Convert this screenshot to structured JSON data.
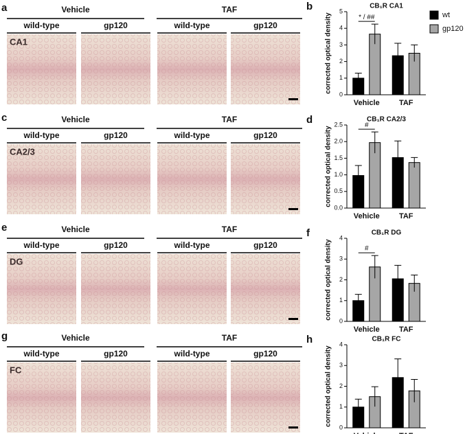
{
  "image_panels": [
    {
      "label": "a",
      "region": "CA1",
      "groups": [
        "Vehicle",
        "TAF"
      ],
      "conditions": [
        "wild-type",
        "gp120",
        "wild-type",
        "gp120"
      ]
    },
    {
      "label": "c",
      "region": "CA2/3",
      "groups": [
        "Vehicle",
        "TAF"
      ],
      "conditions": [
        "wild-type",
        "gp120",
        "wild-type",
        "gp120"
      ]
    },
    {
      "label": "e",
      "region": "DG",
      "groups": [
        "Vehicle",
        "TAF"
      ],
      "conditions": [
        "wild-type",
        "gp120",
        "wild-type",
        "gp120"
      ]
    },
    {
      "label": "g",
      "region": "FC",
      "groups": [
        "Vehicle",
        "TAF"
      ],
      "conditions": [
        "wild-type",
        "gp120",
        "wild-type",
        "gp120"
      ]
    }
  ],
  "chart_data": [
    {
      "type": "bar",
      "panel": "b",
      "title": "CB₁R CA1",
      "y_label": "corrected optical density",
      "categories": [
        "Vehicle",
        "TAF"
      ],
      "series": [
        {
          "name": "wt",
          "color": "#000000",
          "values": [
            1.0,
            2.35
          ],
          "errors": [
            0.3,
            0.75
          ]
        },
        {
          "name": "gp120",
          "color": "#a6a6a6",
          "values": [
            3.65,
            2.5
          ],
          "errors": [
            0.6,
            0.5
          ]
        }
      ],
      "ylim": [
        0,
        5
      ],
      "yticks": [
        0,
        1,
        2,
        3,
        4,
        5
      ],
      "annotation": "* / ##",
      "legend": "top-right"
    },
    {
      "type": "bar",
      "panel": "d",
      "title": "CB₁R CA2/3",
      "y_label": "corrected optical density",
      "categories": [
        "Vehicle",
        "TAF"
      ],
      "series": [
        {
          "name": "wt",
          "color": "#000000",
          "values": [
            0.98,
            1.52
          ],
          "errors": [
            0.3,
            0.5
          ]
        },
        {
          "name": "gp120",
          "color": "#a6a6a6",
          "values": [
            1.97,
            1.37
          ],
          "errors": [
            0.32,
            0.15
          ]
        }
      ],
      "ylim": [
        0,
        2.5
      ],
      "yticks": [
        {
          "value": 0,
          "label": "0.0"
        },
        {
          "value": 0.5,
          "label": "0.5"
        },
        {
          "value": 1,
          "label": "1.0"
        },
        {
          "value": 1.5,
          "label": "1.5"
        },
        {
          "value": 2,
          "label": "2.0"
        },
        {
          "value": 2.5,
          "label": "2.5"
        }
      ],
      "annotation": "#"
    },
    {
      "type": "bar",
      "panel": "f",
      "title": "CB₁R DG",
      "y_label": "corrected optical density",
      "categories": [
        "Vehicle",
        "TAF"
      ],
      "series": [
        {
          "name": "wt",
          "color": "#000000",
          "values": [
            1.0,
            2.05
          ],
          "errors": [
            0.3,
            0.65
          ]
        },
        {
          "name": "gp120",
          "color": "#a6a6a6",
          "values": [
            2.62,
            1.83
          ],
          "errors": [
            0.55,
            0.4
          ]
        }
      ],
      "ylim": [
        0,
        4
      ],
      "yticks": [
        0,
        1,
        2,
        3,
        4
      ],
      "annotation": "#"
    },
    {
      "type": "bar",
      "panel": "h",
      "title": "CB₁R FC",
      "y_label": "corrected optical density",
      "categories": [
        "Vehicle",
        "TAF"
      ],
      "series": [
        {
          "name": "wt",
          "color": "#000000",
          "values": [
            1.0,
            2.42
          ],
          "errors": [
            0.38,
            0.9
          ]
        },
        {
          "name": "gp120",
          "color": "#a6a6a6",
          "values": [
            1.5,
            1.78
          ],
          "errors": [
            0.48,
            0.55
          ]
        }
      ],
      "ylim": [
        0,
        4
      ],
      "yticks": [
        0,
        1,
        2,
        3,
        4
      ]
    }
  ]
}
